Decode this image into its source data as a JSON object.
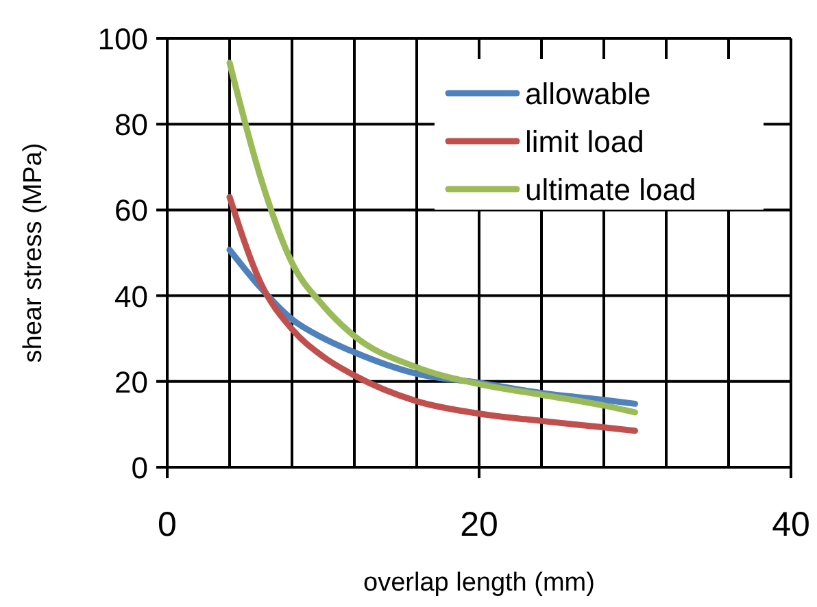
{
  "chart_data": {
    "type": "line",
    "xlabel": "overlap length (mm)",
    "ylabel": "shear stress (MPa)",
    "xlim": [
      0,
      40
    ],
    "xticks": [
      0,
      {
        "value": 4,
        "label": null
      },
      {
        "value": 8,
        "label": null
      },
      {
        "value": 12,
        "label": null
      },
      {
        "value": 16,
        "label": null
      },
      20,
      {
        "value": 24,
        "label": null
      },
      {
        "value": 28,
        "label": null
      },
      {
        "value": 32,
        "label": null
      },
      {
        "value": 36,
        "label": null
      },
      40
    ],
    "ylim": [
      0,
      100
    ],
    "yticks": [
      0,
      20,
      40,
      60,
      80,
      100
    ],
    "grid": true,
    "legend": "top right",
    "marker": "none",
    "line_style": "solid",
    "x": [
      4,
      6,
      8,
      10,
      12,
      16,
      20,
      24,
      28,
      30
    ],
    "series": [
      {
        "name": "allowable",
        "color": "#4f81bd",
        "values": [
          50.7,
          41.8,
          34.5,
          30.1,
          26.8,
          21.8,
          19.7,
          17.3,
          15.7,
          14.8
        ]
      },
      {
        "name": "limit load",
        "color": "#c0504d",
        "values": [
          63,
          42.9,
          32.2,
          25.8,
          21.4,
          15.4,
          12.5,
          10.8,
          9.3,
          8.5
        ]
      },
      {
        "name": "ultimate load",
        "color": "#9bbb59",
        "values": [
          94.3,
          67.4,
          47.7,
          37.7,
          30.6,
          23.3,
          19.4,
          16.9,
          14.4,
          12.8
        ]
      }
    ]
  }
}
